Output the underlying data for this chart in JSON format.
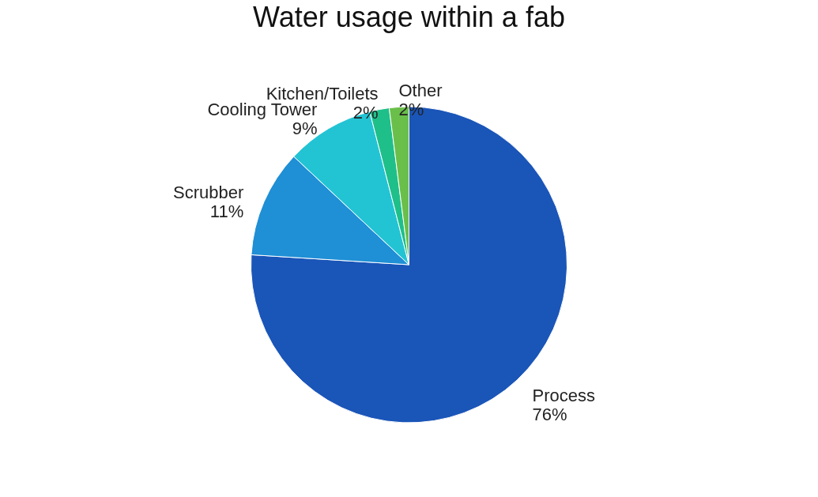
{
  "chart_data": {
    "type": "pie",
    "title": "Water usage within a fab",
    "categories": [
      "Process",
      "Scrubber",
      "Cooling Tower",
      "Kitchen/Toilets",
      "Other"
    ],
    "values": [
      76,
      11,
      9,
      2,
      2
    ],
    "value_labels": [
      "76%",
      "11%",
      "9%",
      "2%",
      "2%"
    ],
    "colors": [
      "#1a55b8",
      "#1f8fd6",
      "#22c4d4",
      "#1fbf8a",
      "#6abf4b"
    ],
    "legend": false
  }
}
